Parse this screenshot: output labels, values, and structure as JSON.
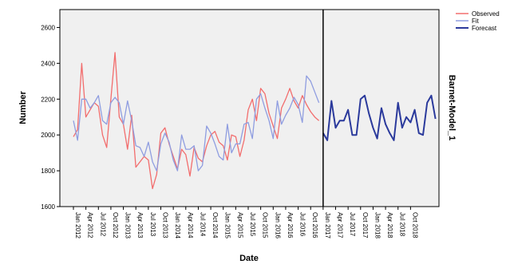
{
  "chart_data": {
    "type": "line",
    "xlabel": "Date",
    "ylabel": "Number",
    "panel_label": "Barnet-Model_1",
    "ylim": [
      1600,
      2700
    ],
    "y_ticks": [
      "1600",
      "1800",
      "2000",
      "2200",
      "2400",
      "2600"
    ],
    "x_ticks": [
      "Jan 2012",
      "Apr 2012",
      "Jul 2012",
      "Oct 2012",
      "Jan 2013",
      "Apr 2013",
      "Jul 2013",
      "Oct 2013",
      "Jan 2014",
      "Apr 2014",
      "Jul 2014",
      "Oct 2014",
      "Jan 2015",
      "Apr 2015",
      "Jul 2015",
      "Oct 2015",
      "Jan 2016",
      "Apr 2016",
      "Jul 2016",
      "Oct 2016",
      "Jan 2017",
      "Apr 2017",
      "Jul 2017",
      "Oct 2017",
      "Jan 2018",
      "Apr 2018",
      "Jul 2018",
      "Oct 2018"
    ],
    "x_range": [
      "2012-01",
      "2019-01"
    ],
    "forecast_start": "2017-01",
    "series": [
      {
        "name": "Observed",
        "color": "#f26d6d",
        "start": "2012-01",
        "values": [
          1990,
          2030,
          2400,
          2100,
          2140,
          2180,
          2160,
          2000,
          1930,
          2200,
          2460,
          2100,
          2060,
          1920,
          2110,
          1820,
          1850,
          1880,
          1860,
          1700,
          1780,
          2010,
          2040,
          1950,
          1880,
          1810,
          1920,
          1890,
          1770,
          1930,
          1870,
          1850,
          1940,
          2000,
          2020,
          1960,
          1940,
          1860,
          2000,
          1990,
          1880,
          1970,
          2140,
          2200,
          2080,
          2260,
          2230,
          2120,
          2050,
          1980,
          2150,
          2200,
          2260,
          2190,
          2150,
          2220,
          2170,
          2130,
          2100,
          2080
        ]
      },
      {
        "name": "Fit",
        "color": "#8f9de0",
        "start": "2012-01",
        "values": [
          2080,
          1970,
          2200,
          2200,
          2150,
          2180,
          2220,
          2080,
          2060,
          2180,
          2210,
          2180,
          2060,
          2190,
          2080,
          1940,
          1930,
          1880,
          1960,
          1850,
          1800,
          1950,
          2010,
          1960,
          1860,
          1800,
          2000,
          1920,
          1920,
          1940,
          1800,
          1830,
          2050,
          2010,
          1950,
          1880,
          1860,
          2060,
          1900,
          1950,
          1950,
          2060,
          2070,
          1980,
          2200,
          2230,
          2150,
          2080,
          1980,
          2190,
          2060,
          2110,
          2150,
          2210,
          2170,
          2070,
          2330,
          2300,
          2240,
          2180
        ]
      },
      {
        "name": "Forecast",
        "color": "#2b3a9c",
        "start": "2017-01",
        "values": [
          2010,
          1970,
          2190,
          2040,
          2080,
          2080,
          2140,
          2000,
          2000,
          2200,
          2220,
          2120,
          2040,
          1980,
          2150,
          2060,
          2010,
          1970,
          2180,
          2040,
          2100,
          2070,
          2140,
          2010,
          2000,
          2180,
          2220,
          2090
        ]
      }
    ],
    "legend_position": "top-right",
    "grid": false
  }
}
